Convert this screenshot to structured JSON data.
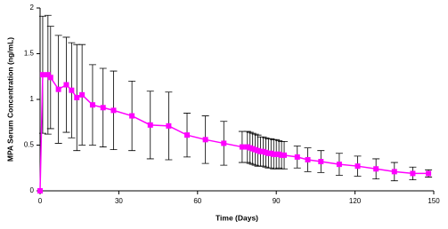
{
  "chart_data": {
    "type": "line",
    "x_label": "Time (Days)",
    "y_label": "MPA Serum Concentration (ng/mL)",
    "x": [
      0,
      1,
      3,
      4,
      7,
      10,
      12,
      14,
      16,
      20,
      24,
      28,
      35,
      42,
      49,
      56,
      63,
      70,
      77,
      79,
      80,
      81,
      82,
      83,
      84,
      85,
      86,
      87,
      88,
      89,
      90,
      91,
      92,
      93,
      98,
      102,
      107,
      114,
      121,
      128,
      135,
      142,
      148
    ],
    "series": [
      {
        "color": "#ff00ff",
        "values": [
          0,
          1.27,
          1.27,
          1.24,
          1.11,
          1.16,
          1.1,
          1.02,
          1.05,
          0.94,
          0.91,
          0.88,
          0.82,
          0.72,
          0.71,
          0.61,
          0.56,
          0.52,
          0.48,
          0.48,
          0.47,
          0.46,
          0.45,
          0.44,
          0.43,
          0.43,
          0.42,
          0.41,
          0.41,
          0.4,
          0.4,
          0.4,
          0.39,
          0.39,
          0.37,
          0.34,
          0.32,
          0.29,
          0.27,
          0.24,
          0.21,
          0.19,
          0.19
        ],
        "errors": [
          0,
          0.64,
          0.65,
          0.56,
          0.59,
          0.52,
          0.52,
          0.58,
          0.55,
          0.44,
          0.43,
          0.43,
          0.38,
          0.37,
          0.37,
          0.24,
          0.26,
          0.24,
          0.17,
          0.17,
          0.17,
          0.17,
          0.17,
          0.17,
          0.16,
          0.16,
          0.16,
          0.16,
          0.16,
          0.16,
          0.16,
          0.15,
          0.15,
          0.15,
          0.12,
          0.13,
          0.12,
          0.12,
          0.11,
          0.11,
          0.1,
          0.07,
          0.04
        ]
      }
    ],
    "xlim": [
      0,
      150
    ],
    "xticks": [
      0,
      30,
      60,
      90,
      120,
      150
    ],
    "ylim": [
      0,
      2
    ],
    "yticks": [
      0,
      0.5,
      1,
      1.5,
      2
    ],
    "grid": false
  }
}
